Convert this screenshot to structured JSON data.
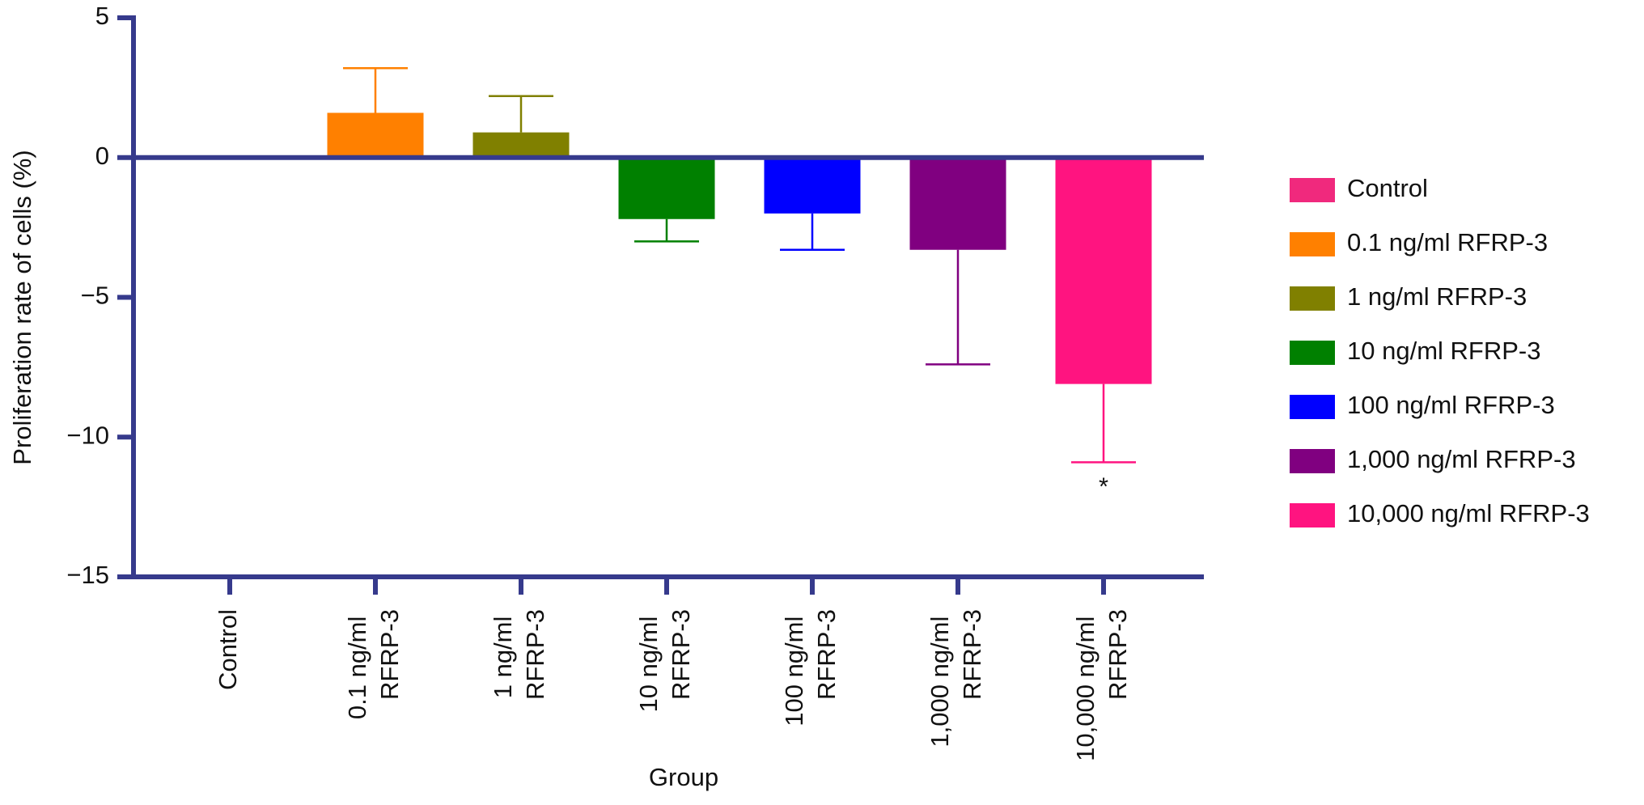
{
  "chart_data": {
    "type": "bar",
    "y_label": "Proliferation rate of cells (%)",
    "x_label": "Group",
    "categories": [
      "Control",
      "0.1 ng/ml RFRP-3",
      "1 ng/ml RFRP-3",
      "10 ng/ml RFRP-3",
      "100 ng/ml RFRP-3",
      "1,000 ng/ml RFRP-3",
      "10,000 ng/ml RFRP-3"
    ],
    "values": [
      0,
      1.6,
      0.9,
      -2.2,
      -2.0,
      -3.3,
      -8.1
    ],
    "errors": [
      0,
      1.6,
      1.3,
      0.8,
      1.3,
      4.1,
      2.8
    ],
    "colors": [
      "#f0297d",
      "#ff8000",
      "#808000",
      "#008000",
      "#0000ff",
      "#800080",
      "#ff1480"
    ],
    "annotation": "*",
    "ylim": [
      -15,
      5
    ],
    "yticks": [
      {
        "value": -15,
        "label": "−15"
      },
      {
        "value": -10,
        "label": "−10"
      },
      {
        "value": -5,
        "label": "−5"
      },
      0,
      5
    ],
    "legend": "right"
  }
}
